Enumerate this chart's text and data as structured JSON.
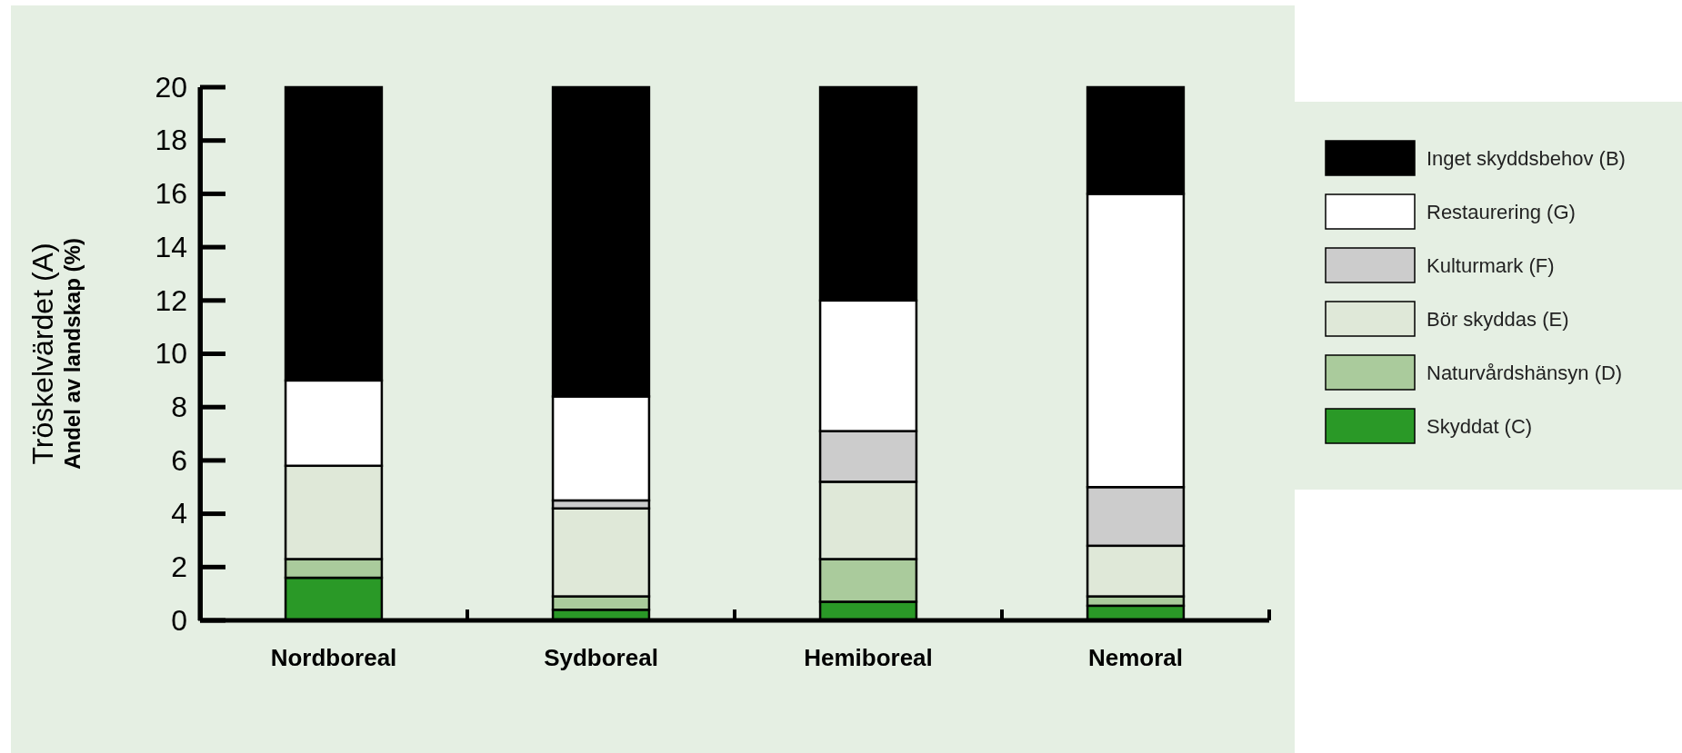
{
  "chart_data": {
    "type": "bar",
    "stacked": true,
    "ylabel": "Tröskelvärdet (A)\nAndel av landskap (%)",
    "categories": [
      "Nordboreal",
      "Sydboreal",
      "Hemiboreal",
      "Nemoral"
    ],
    "series": [
      {
        "name": "Skyddat (C)",
        "color": "#2a9927",
        "values": [
          1.6,
          0.4,
          0.7,
          0.55
        ]
      },
      {
        "name": "Naturvårdshänsyn (D)",
        "color": "#aacb9c",
        "values": [
          0.7,
          0.5,
          1.6,
          0.35
        ]
      },
      {
        "name": "Bör skyddas (E)",
        "color": "#dfe8d8",
        "values": [
          3.5,
          3.3,
          2.9,
          1.9
        ]
      },
      {
        "name": "Kulturmark (F)",
        "color": "#cccccc",
        "values": [
          0,
          0.3,
          1.9,
          2.2
        ]
      },
      {
        "name": "Restaurering (G)",
        "color": "#ffffff",
        "values": [
          3.2,
          3.9,
          4.9,
          11
        ]
      },
      {
        "name": "Inget skyddsbehov (B)",
        "color": "#000000",
        "values": [
          11,
          11.6,
          8,
          4
        ]
      }
    ],
    "ylim": [
      0,
      20
    ],
    "yticks": [
      0,
      2,
      4,
      6,
      8,
      10,
      12,
      14,
      16,
      18,
      20
    ],
    "legend": "right",
    "grid": false
  }
}
